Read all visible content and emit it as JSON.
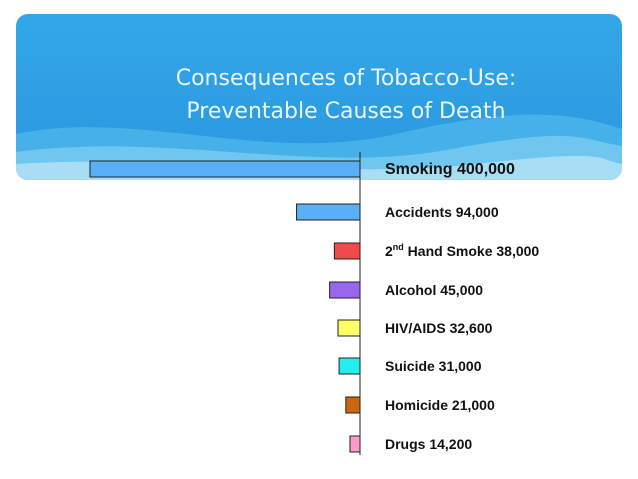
{
  "slide": {
    "title_line1": "Consequences of Tobacco-Use:",
    "title_line2": "Preventable Causes of Death"
  },
  "chart_data": {
    "type": "bar",
    "orientation": "horizontal",
    "categories": [
      {
        "name": "Smoking",
        "value_label": "400,000",
        "superscript": ""
      },
      {
        "name": "Accidents",
        "value_label": "94,000",
        "superscript": ""
      },
      {
        "name": "2",
        "superscript": "nd",
        "name_after": " Hand Smoke",
        "value_label": "38,000"
      },
      {
        "name": "Alcohol",
        "value_label": "45,000",
        "superscript": ""
      },
      {
        "name": "HIV/AIDS",
        "value_label": "32,600",
        "superscript": ""
      },
      {
        "name": "Suicide",
        "value_label": "31,000",
        "superscript": ""
      },
      {
        "name": "Homicide",
        "value_label": "21,000",
        "superscript": ""
      },
      {
        "name": "Drugs",
        "value_label": "14,200",
        "superscript": ""
      }
    ],
    "values": [
      400000,
      94000,
      38000,
      45000,
      32600,
      31000,
      21000,
      14200
    ],
    "colors": [
      "#5ab0f5",
      "#5ab0f5",
      "#f04a4a",
      "#9966ee",
      "#ffff66",
      "#22eeee",
      "#cc6611",
      "#ff99cc"
    ],
    "xlim": [
      0,
      400000
    ],
    "bars_extend": "left",
    "grid": false,
    "legend": "none"
  }
}
